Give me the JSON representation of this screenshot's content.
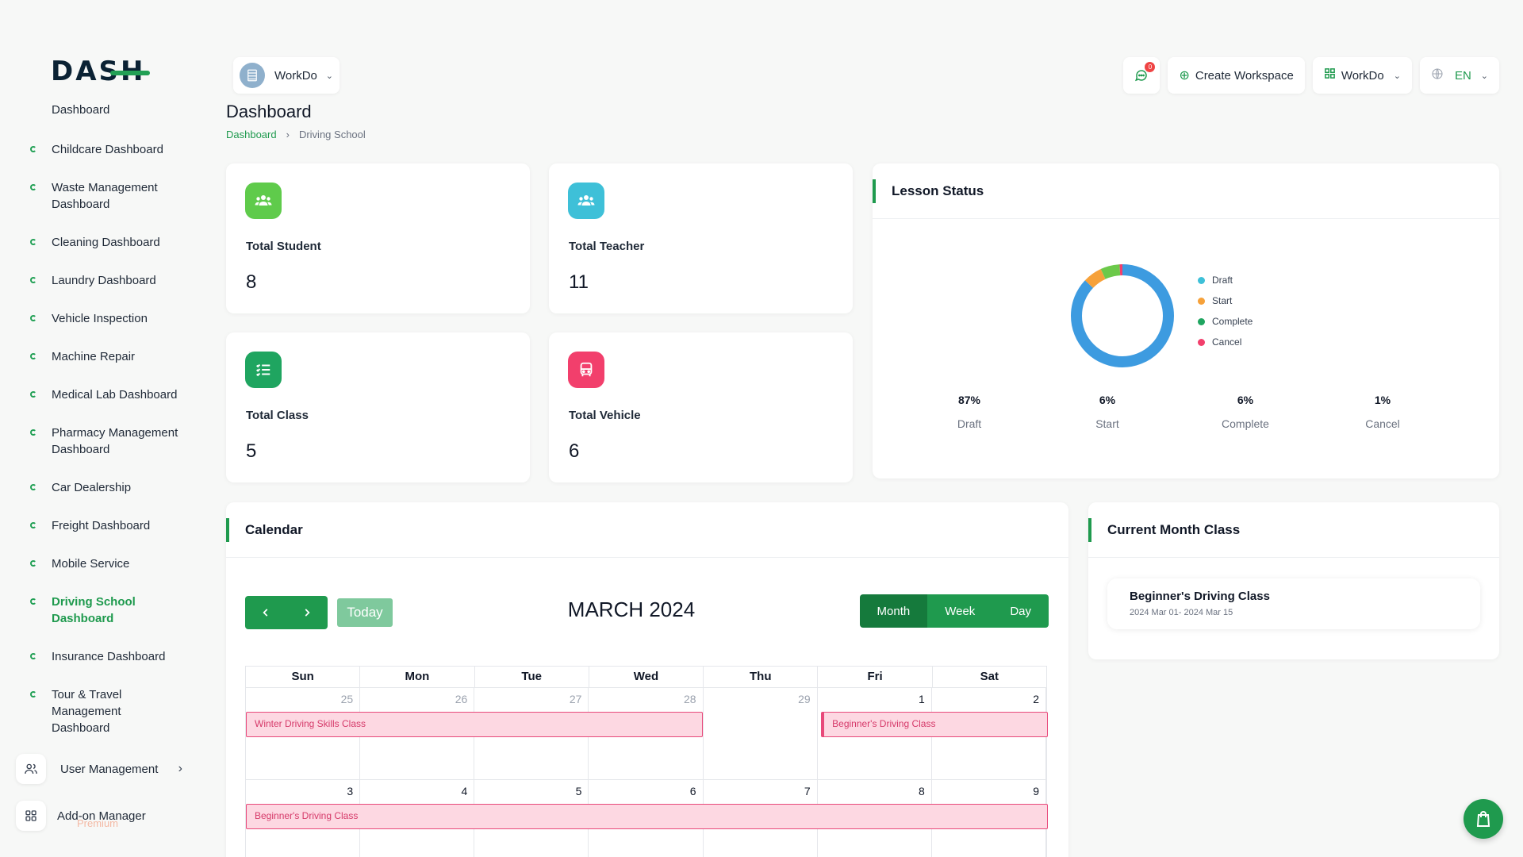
{
  "app": {
    "logo": "DASH"
  },
  "sidebar": {
    "top_item": "Dashboard",
    "items": [
      {
        "label": "Childcare Dashboard"
      },
      {
        "label": "Waste Management Dashboard"
      },
      {
        "label": "Cleaning Dashboard"
      },
      {
        "label": "Laundry Dashboard"
      },
      {
        "label": "Vehicle Inspection"
      },
      {
        "label": "Machine Repair"
      },
      {
        "label": "Medical Lab Dashboard"
      },
      {
        "label": "Pharmacy Management Dashboard"
      },
      {
        "label": "Car Dealership"
      },
      {
        "label": "Freight Dashboard"
      },
      {
        "label": "Mobile Service"
      },
      {
        "label": "Driving School Dashboard"
      },
      {
        "label": "Insurance Dashboard"
      },
      {
        "label": "Tour & Travel Management Dashboard"
      }
    ],
    "active_item": "Driving School Dashboard",
    "user_management": "User Management",
    "addon_manager": "Add-on Manager",
    "premium": "Premium"
  },
  "header": {
    "workspace_name": "WorkDo",
    "page_title": "Dashboard",
    "breadcrumb": {
      "home": "Dashboard",
      "current": "Driving School"
    },
    "notification_count": "0",
    "create_workspace": "Create Workspace",
    "workspace_menu": "WorkDo",
    "language": "EN"
  },
  "stats": {
    "total_student": {
      "label": "Total Student",
      "value": "8",
      "color": "#5fcb4b"
    },
    "total_teacher": {
      "label": "Total Teacher",
      "value": "11",
      "color": "#3ec0d8"
    },
    "total_class": {
      "label": "Total Class",
      "value": "5",
      "color": "#1fa560"
    },
    "total_vehicle": {
      "label": "Total Vehicle",
      "value": "6",
      "color": "#f23f6c"
    }
  },
  "lesson_status": {
    "title": "Lesson Status",
    "legend": [
      {
        "label": "Draft",
        "color": "#3ec0d8"
      },
      {
        "label": "Start",
        "color": "#f6a13a"
      },
      {
        "label": "Complete",
        "color": "#1fa560"
      },
      {
        "label": "Cancel",
        "color": "#f23f6c"
      }
    ],
    "summary": [
      {
        "value": "87%",
        "label": "Draft"
      },
      {
        "value": "6%",
        "label": "Start"
      },
      {
        "value": "6%",
        "label": "Complete"
      },
      {
        "value": "1%",
        "label": "Cancel"
      }
    ]
  },
  "chart_data": {
    "type": "pie",
    "categories": [
      "Draft",
      "Start",
      "Complete",
      "Cancel"
    ],
    "values": [
      87,
      6,
      6,
      1
    ],
    "colors": [
      "#3d9be0",
      "#f6a13a",
      "#6cc94a",
      "#f23f6c"
    ],
    "title": "Lesson Status"
  },
  "calendar": {
    "title": "Calendar",
    "month_label": "MARCH 2024",
    "today": "Today",
    "views": [
      "Month",
      "Week",
      "Day"
    ],
    "active_view": "Month",
    "weekdays": [
      "Sun",
      "Mon",
      "Tue",
      "Wed",
      "Thu",
      "Fri",
      "Sat"
    ],
    "weeks": [
      {
        "days": [
          {
            "num": "25",
            "muted": true
          },
          {
            "num": "26",
            "muted": true
          },
          {
            "num": "27",
            "muted": true
          },
          {
            "num": "28",
            "muted": true
          },
          {
            "num": "29",
            "muted": true
          },
          {
            "num": "1",
            "muted": false
          },
          {
            "num": "2",
            "muted": false
          }
        ],
        "events": [
          {
            "title": "Winter Driving Skills Class",
            "start_col": 0,
            "end_col": 3,
            "left_bar": false,
            "open_end": false
          },
          {
            "title": "Beginner's Driving Class",
            "start_col": 5,
            "end_col": 6,
            "left_bar": true,
            "open_end": true
          }
        ]
      },
      {
        "days": [
          {
            "num": "3",
            "muted": false
          },
          {
            "num": "4",
            "muted": false
          },
          {
            "num": "5",
            "muted": false
          },
          {
            "num": "6",
            "muted": false
          },
          {
            "num": "7",
            "muted": false
          },
          {
            "num": "8",
            "muted": false
          },
          {
            "num": "9",
            "muted": false
          }
        ],
        "events": [
          {
            "title": "Beginner's Driving Class",
            "start_col": 0,
            "end_col": 6,
            "left_bar": false,
            "open_end": true
          }
        ]
      }
    ]
  },
  "current_month_class": {
    "title": "Current Month Class",
    "items": [
      {
        "name": "Beginner's Driving Class",
        "date": "2024 Mar 01- 2024 Mar 15"
      }
    ]
  }
}
